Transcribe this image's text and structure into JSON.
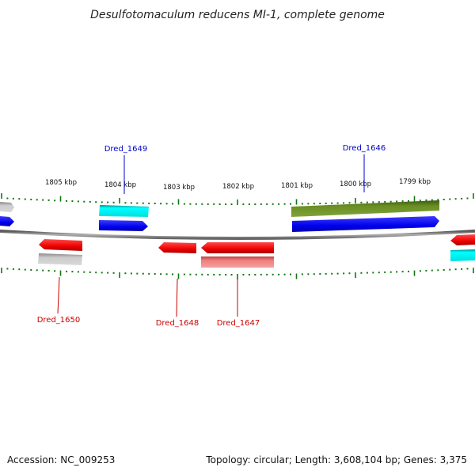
{
  "title": "Desulfotomaculum reducens MI-1, complete genome",
  "footer": {
    "accession": "Accession: NC_009253",
    "summary": "Topology: circular; Length: 3,608,104 bp; Genes: 3,375"
  },
  "ticks": [
    "1805 kbp",
    "1804 kbp",
    "1803 kbp",
    "1802 kbp",
    "1801 kbp",
    "1800 kbp",
    "1799 kbp"
  ],
  "gene_labels": [
    {
      "id": "Dred_1649",
      "color": "#0000cc"
    },
    {
      "id": "Dred_1646",
      "color": "#0000cc"
    },
    {
      "id": "Dred_1650",
      "color": "#cc0000"
    },
    {
      "id": "Dred_1648",
      "color": "#cc0000"
    },
    {
      "id": "Dred_1647",
      "color": "#cc0000"
    }
  ],
  "colors": {
    "backbone": "#808080",
    "forward_cds": "#0000ff",
    "reverse_cds": "#ff0000",
    "cyan_feature": "#00e5e5",
    "olive_feature": "#6b8e23",
    "grey_feature": "#bbbbbb",
    "pink_feature": "#f08080",
    "tick_color": "#117711"
  }
}
